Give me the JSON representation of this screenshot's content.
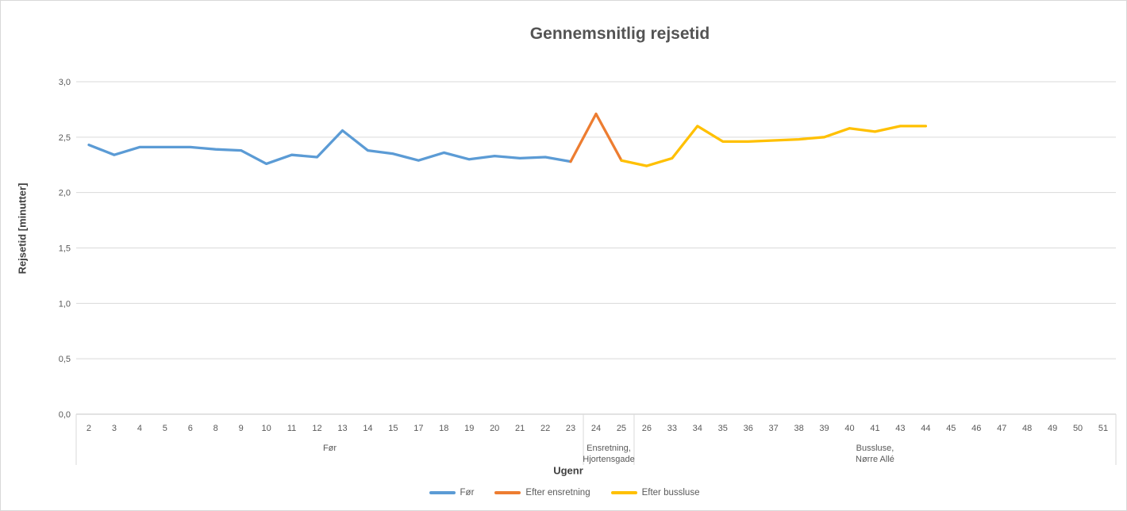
{
  "chart_data": {
    "type": "line",
    "title": "Gennemsnitlig rejsetid",
    "xlabel": "Ugenr",
    "ylabel": "Rejsetid [minutter]",
    "ylim": [
      0.0,
      3.0
    ],
    "ytick_step": 0.5,
    "ytick_labels": [
      "0,0",
      "0,5",
      "1,0",
      "1,5",
      "2,0",
      "2,5",
      "3,0"
    ],
    "decimal_separator": ",",
    "grid": true,
    "legend_position": "bottom",
    "categories": [
      "2",
      "3",
      "4",
      "5",
      "6",
      "8",
      "9",
      "10",
      "11",
      "12",
      "13",
      "14",
      "15",
      "17",
      "18",
      "19",
      "20",
      "21",
      "22",
      "23",
      "24",
      "25",
      "26",
      "33",
      "34",
      "35",
      "36",
      "37",
      "38",
      "39",
      "40",
      "41",
      "43",
      "44",
      "45",
      "46",
      "47",
      "48",
      "49",
      "50",
      "51"
    ],
    "category_groups": [
      {
        "label_lines": [
          "Før"
        ],
        "from_week": "2",
        "to_week": "23",
        "start_index": 0,
        "end_index": 19
      },
      {
        "label_lines": [
          "Ensretning,",
          "Hjortensgade"
        ],
        "from_week": "24",
        "to_week": "25",
        "start_index": 20,
        "end_index": 21
      },
      {
        "label_lines": [
          "Bussluse,",
          "Nørre Allé"
        ],
        "from_week": "26",
        "to_week": "51",
        "start_index": 22,
        "end_index": 40
      }
    ],
    "series": [
      {
        "name": "Før",
        "color": "#5B9BD5",
        "points": [
          [
            "2",
            2.43
          ],
          [
            "3",
            2.34
          ],
          [
            "4",
            2.41
          ],
          [
            "5",
            2.41
          ],
          [
            "6",
            2.41
          ],
          [
            "8",
            2.39
          ],
          [
            "9",
            2.38
          ],
          [
            "10",
            2.26
          ],
          [
            "11",
            2.34
          ],
          [
            "12",
            2.32
          ],
          [
            "13",
            2.56
          ],
          [
            "14",
            2.38
          ],
          [
            "15",
            2.35
          ],
          [
            "17",
            2.29
          ],
          [
            "18",
            2.36
          ],
          [
            "19",
            2.3
          ],
          [
            "20",
            2.33
          ],
          [
            "21",
            2.31
          ],
          [
            "22",
            2.32
          ],
          [
            "23",
            2.28
          ]
        ]
      },
      {
        "name": "Efter ensretning",
        "color": "#ED7D31",
        "points": [
          [
            "23",
            2.28
          ],
          [
            "24",
            2.71
          ],
          [
            "25",
            2.29
          ]
        ]
      },
      {
        "name": "Efter bussluse",
        "color": "#FFC000",
        "points": [
          [
            "25",
            2.29
          ],
          [
            "26",
            2.24
          ],
          [
            "33",
            2.31
          ],
          [
            "34",
            2.6
          ],
          [
            "35",
            2.46
          ],
          [
            "36",
            2.46
          ],
          [
            "37",
            2.47
          ],
          [
            "38",
            2.48
          ],
          [
            "39",
            2.5
          ],
          [
            "40",
            2.58
          ],
          [
            "41",
            2.55
          ],
          [
            "43",
            2.6
          ],
          [
            "44",
            2.6
          ]
        ]
      }
    ],
    "colors": {
      "grid": "#D9D9D9",
      "axis_line": "#C6C6C6",
      "tick_text": "#595959",
      "title_text": "#545454"
    }
  }
}
